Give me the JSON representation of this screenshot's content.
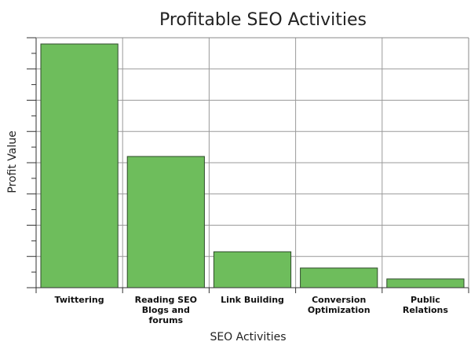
{
  "chart_data": {
    "type": "bar",
    "title": "Profitable SEO Activities",
    "xlabel": "SEO Activities",
    "ylabel": "Profit Value",
    "categories": [
      "Twittering",
      "Reading SEO Blogs and forums",
      "Link Building",
      "Conversion Optimization",
      "Public Relations"
    ],
    "category_lines": [
      [
        "Twittering"
      ],
      [
        "Reading SEO",
        "Blogs and",
        "forums"
      ],
      [
        "Link Building"
      ],
      [
        "Conversion",
        "Optimization"
      ],
      [
        "Public",
        "Relations"
      ]
    ],
    "values": [
      78,
      42,
      11.5,
      6.3,
      2.8
    ],
    "ylim": [
      0,
      80
    ],
    "y_major_step": 10,
    "y_minor_step": 5,
    "y_tick_labels_shown": false,
    "grid": true,
    "legend": "none",
    "bar_color": "#6ebd5c",
    "bar_edge_color": "#2e4a2a"
  }
}
